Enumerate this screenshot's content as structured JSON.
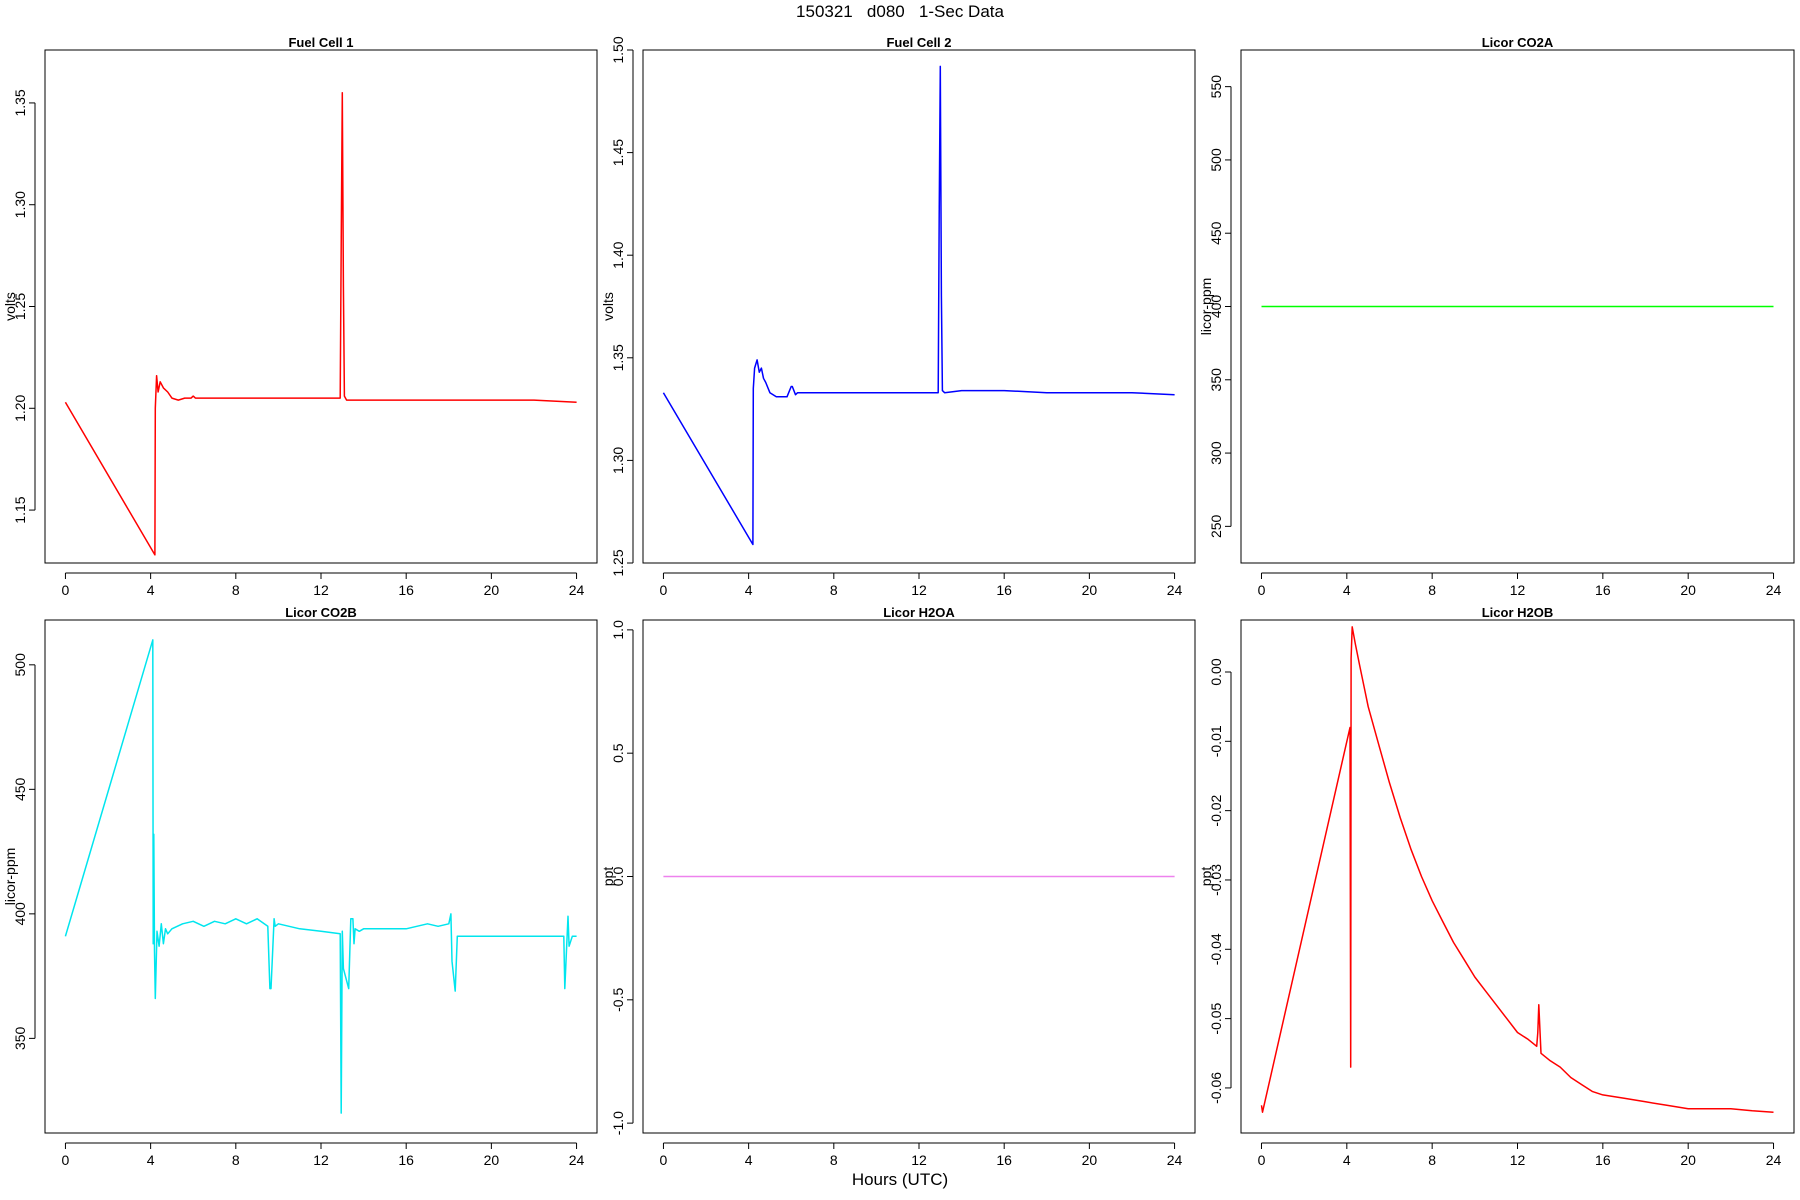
{
  "page": {
    "title": "150321   d080   1-Sec Data",
    "x_label": "Hours (UTC)"
  },
  "chart_data": [
    {
      "type": "line",
      "title": "Fuel Cell 1",
      "ylabel": "volts",
      "xlim": [
        0,
        24
      ],
      "ylim": [
        1.124,
        1.376
      ],
      "xticks": [
        0,
        4,
        8,
        12,
        16,
        20,
        24
      ],
      "yticks": [
        "1.15",
        "1.20",
        "1.25",
        "1.30",
        "1.35"
      ],
      "series": [
        {
          "color": "#ff0000",
          "x": [
            0,
            4.2,
            4.22,
            4.28,
            4.35,
            4.45,
            4.6,
            4.8,
            5.0,
            5.3,
            5.6,
            5.9,
            6.0,
            6.1,
            8,
            10,
            12,
            12.9,
            12.95,
            13.0,
            13.05,
            13.1,
            13.2,
            14,
            16,
            18,
            20,
            22,
            24
          ],
          "y": [
            1.203,
            1.128,
            1.2,
            1.216,
            1.208,
            1.213,
            1.21,
            1.208,
            1.205,
            1.204,
            1.205,
            1.205,
            1.206,
            1.205,
            1.205,
            1.205,
            1.205,
            1.205,
            1.28,
            1.355,
            1.26,
            1.206,
            1.204,
            1.204,
            1.204,
            1.204,
            1.204,
            1.204,
            1.203
          ]
        }
      ]
    },
    {
      "type": "line",
      "title": "Fuel Cell 2",
      "ylabel": "volts",
      "xlim": [
        0,
        24
      ],
      "ylim": [
        1.25,
        1.5
      ],
      "xticks": [
        0,
        4,
        8,
        12,
        16,
        20,
        24
      ],
      "yticks": [
        "1.25",
        "1.30",
        "1.35",
        "1.40",
        "1.45",
        "1.50"
      ],
      "series": [
        {
          "color": "#0000ff",
          "x": [
            0,
            4.2,
            4.22,
            4.28,
            4.4,
            4.5,
            4.6,
            4.7,
            4.8,
            5.0,
            5.3,
            5.8,
            6.0,
            6.05,
            6.2,
            6.3,
            8,
            10,
            12,
            12.9,
            12.95,
            13.0,
            13.05,
            13.1,
            13.2,
            14,
            16,
            18,
            20,
            22,
            24
          ],
          "y": [
            1.333,
            1.259,
            1.335,
            1.345,
            1.349,
            1.343,
            1.345,
            1.34,
            1.338,
            1.333,
            1.331,
            1.331,
            1.336,
            1.336,
            1.332,
            1.333,
            1.333,
            1.333,
            1.333,
            1.333,
            1.42,
            1.492,
            1.38,
            1.334,
            1.333,
            1.334,
            1.334,
            1.333,
            1.333,
            1.333,
            1.332
          ]
        }
      ]
    },
    {
      "type": "line",
      "title": "Licor CO2A",
      "ylabel": "licor-ppm",
      "xlim": [
        0,
        24
      ],
      "ylim": [
        225,
        575
      ],
      "xticks": [
        0,
        4,
        8,
        12,
        16,
        20,
        24
      ],
      "yticks": [
        "250",
        "300",
        "350",
        "400",
        "450",
        "500",
        "550"
      ],
      "series": [
        {
          "color": "#00ff00",
          "x": [
            0,
            24
          ],
          "y": [
            400,
            400
          ]
        }
      ]
    },
    {
      "type": "line",
      "title": "Licor CO2B",
      "ylabel": "licor-ppm",
      "xlim": [
        0,
        24
      ],
      "ylim": [
        312,
        518
      ],
      "xticks": [
        0,
        4,
        8,
        12,
        16,
        20,
        24
      ],
      "yticks": [
        "350",
        "400",
        "450",
        "500"
      ],
      "series": [
        {
          "color": "#00e5ee",
          "x": [
            0,
            4.1,
            4.12,
            4.15,
            4.18,
            4.22,
            4.3,
            4.4,
            4.5,
            4.6,
            4.7,
            4.8,
            5.0,
            5.5,
            6.0,
            6.5,
            7.0,
            7.5,
            8.0,
            8.5,
            9.0,
            9.5,
            9.6,
            9.65,
            9.8,
            9.85,
            10.0,
            11.0,
            12.0,
            12.9,
            12.95,
            13.0,
            13.05,
            13.3,
            13.4,
            13.5,
            13.55,
            13.6,
            13.8,
            14.0,
            15.0,
            16.0,
            17.0,
            17.5,
            18.0,
            18.1,
            18.15,
            18.3,
            18.4,
            19.0,
            20.0,
            21.0,
            22.0,
            23.4,
            23.45,
            23.6,
            23.65,
            23.8,
            24
          ],
          "y": [
            391,
            510,
            388,
            432,
            385,
            366,
            393,
            387,
            396,
            388,
            394,
            392,
            394,
            396,
            397,
            395,
            397,
            396,
            398,
            396,
            398,
            395,
            370,
            370,
            398,
            395,
            396,
            394,
            393,
            392,
            320,
            393,
            378,
            370,
            398,
            398,
            388,
            394,
            393,
            394,
            394,
            394,
            396,
            395,
            396,
            400,
            381,
            369,
            391,
            391,
            391,
            391,
            391,
            391,
            370,
            399,
            387,
            391,
            391
          ]
        }
      ]
    },
    {
      "type": "line",
      "title": "Licor H2OA",
      "ylabel": "ppt",
      "xlim": [
        0,
        24
      ],
      "ylim": [
        -1.04,
        1.04
      ],
      "xticks": [
        0,
        4,
        8,
        12,
        16,
        20,
        24
      ],
      "yticks": [
        "-1.0",
        "-0.5",
        "0.0",
        "0.5",
        "1.0"
      ],
      "series": [
        {
          "color": "#ee82ee",
          "x": [
            0,
            24
          ],
          "y": [
            0.0,
            0.0
          ]
        }
      ]
    },
    {
      "type": "line",
      "title": "Licor H2OB",
      "ylabel": "ppt",
      "xlim": [
        0,
        24
      ],
      "ylim": [
        -0.0665,
        0.0075
      ],
      "xticks": [
        0,
        4,
        8,
        12,
        16,
        20,
        24
      ],
      "yticks": [
        "-0.06",
        "-0.05",
        "-0.04",
        "-0.03",
        "-0.02",
        "-0.01",
        "0.00"
      ],
      "series": [
        {
          "color": "#ff0000",
          "x": [
            0,
            0.05,
            4.15,
            4.18,
            4.2,
            4.25,
            4.4,
            4.6,
            4.8,
            5.0,
            5.5,
            6.0,
            6.5,
            7.0,
            7.5,
            8.0,
            8.5,
            9.0,
            9.5,
            10.0,
            10.5,
            11.0,
            11.5,
            12.0,
            12.5,
            12.9,
            12.95,
            13.0,
            13.1,
            13.5,
            14.0,
            14.5,
            15.0,
            15.5,
            16.0,
            17.0,
            18.0,
            19.0,
            20.0,
            21.0,
            22.0,
            23.0,
            24.0
          ],
          "y": [
            -0.0625,
            -0.0635,
            -0.008,
            -0.057,
            0.002,
            0.0065,
            0.004,
            0.001,
            -0.002,
            -0.005,
            -0.0105,
            -0.016,
            -0.021,
            -0.0255,
            -0.0295,
            -0.033,
            -0.036,
            -0.039,
            -0.0415,
            -0.044,
            -0.046,
            -0.048,
            -0.05,
            -0.052,
            -0.053,
            -0.054,
            -0.052,
            -0.048,
            -0.055,
            -0.056,
            -0.057,
            -0.0585,
            -0.0595,
            -0.0605,
            -0.061,
            -0.0615,
            -0.062,
            -0.0625,
            -0.063,
            -0.063,
            -0.063,
            -0.0633,
            -0.0635
          ]
        }
      ]
    }
  ]
}
